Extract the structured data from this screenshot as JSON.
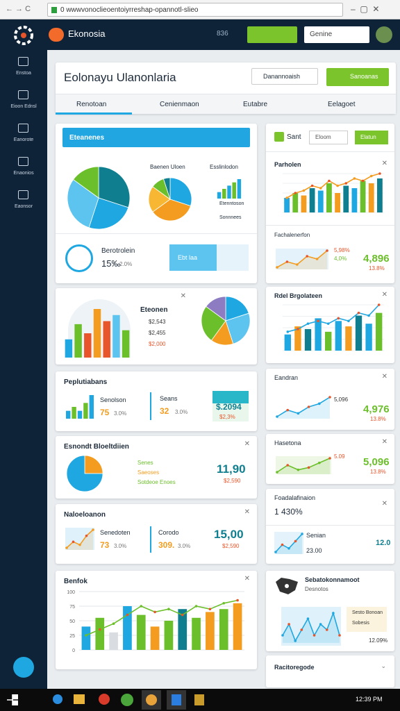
{
  "browser": {
    "url": "0 wwwvonoclieoentoiyrreshap-opannotl-slieo"
  },
  "app": {
    "brand": "Ekonosia",
    "badge": "836",
    "search": "Genine"
  },
  "sidebar": [
    {
      "label": "Enstoa"
    },
    {
      "label": "Eioon Ednsl"
    },
    {
      "label": "Eanorote"
    },
    {
      "label": "Enaonios"
    },
    {
      "label": "Eaonsor"
    }
  ],
  "page": {
    "title": "Eolonayu Ulanonlaria",
    "dropdown": "Danannoaish",
    "button": "Sanoanas",
    "tabs": [
      "Renotoan",
      "Cenienmaon",
      "Eutabre",
      "Eelagoet"
    ]
  },
  "left": [
    {
      "header": "Eteanenes",
      "pie_a": {
        "type": "pie",
        "values": [
          30,
          25,
          30,
          15
        ],
        "colors": [
          "#0f7f8f",
          "#1ea7e0",
          "#5cc4ef",
          "#6bbf2a"
        ]
      },
      "pie_b_title": "Baenen Uloen",
      "pie_b": {
        "type": "pie",
        "values": [
          30,
          35,
          20,
          10,
          5
        ],
        "colors": [
          "#1ea7e0",
          "#f39c1f",
          "#f7b733",
          "#6bbf2a",
          "#0f7f8f"
        ]
      },
      "bars_title": "Esslinlodon",
      "bars_c": {
        "type": "bar",
        "values": [
          2,
          3,
          4,
          5,
          6
        ],
        "colors": [
          "#1ea7e0",
          "#6bbf2a"
        ]
      },
      "legend": [
        "Etenntoson",
        "Sonnnees"
      ],
      "stat_label": "Berotrolein",
      "stat_value": "15‰",
      "stat_sub": "2.0%",
      "stat_box": "Ebt laa"
    },
    {
      "title": "Eteonen",
      "bars": {
        "type": "bar",
        "values": [
          30,
          55,
          40,
          80,
          60,
          70,
          45
        ],
        "colors": [
          "#1ea7e0",
          "#6bbf2a",
          "#e8552a",
          "#f39c1f",
          "#e8552a",
          "#5cc4ef",
          "#6bbf2a"
        ]
      },
      "items": [
        "$2,543",
        "$2,455",
        "$2,000"
      ],
      "pie": {
        "type": "pie",
        "values": [
          20,
          25,
          15,
          25,
          15
        ],
        "colors": [
          "#1ea7e0",
          "#5cc4ef",
          "#f39c1f",
          "#6bbf2a",
          "#8e7cc3"
        ]
      }
    },
    {
      "title": "Peplutiabans",
      "spark": {
        "type": "bar",
        "values": [
          2,
          3,
          2,
          4,
          6
        ],
        "colors": [
          "#1ea7e0",
          "#6bbf2a"
        ]
      },
      "m1": {
        "label": "Senolson",
        "value": "75",
        "sub": "3.0%"
      },
      "m2": {
        "label": "Seans",
        "value": "32",
        "sub": "3.0%"
      },
      "box": {
        "value": "$.2094",
        "sub": "$2,3%"
      }
    },
    {
      "title": "Esnondt Bloeltdiien",
      "pie": {
        "type": "pie",
        "values": [
          25,
          75
        ],
        "colors": [
          "#f39c1f",
          "#1ea7e0"
        ]
      },
      "legend": [
        "Senes",
        "Saeoses",
        "Sotdeoe Enoes"
      ],
      "value": "11,90",
      "sub": "$2,590"
    },
    {
      "title": "Naloeloanon",
      "spark": {
        "type": "line",
        "values": [
          3,
          5,
          4,
          7,
          9
        ],
        "color": "#f39c1f"
      },
      "m1": {
        "label": "Senedoten",
        "value": "73",
        "sub": "3.0%"
      },
      "m2": {
        "label": "Corodo",
        "value": "309.",
        "sub": "3.0%"
      },
      "value": "15,00",
      "sub": "$2,590"
    },
    {
      "title": "Benfok",
      "chart": {
        "type": "combo",
        "bars": [
          40,
          55,
          30,
          75,
          60,
          40,
          50,
          70,
          55,
          65,
          70,
          80
        ],
        "bar_colors": [
          "#1ea7e0",
          "#6bbf2a",
          "#d9dde2",
          "#1ea7e0",
          "#6bbf2a",
          "#f39c1f",
          "#6bbf2a",
          "#0f7f8f",
          "#6bbf2a",
          "#f39c1f",
          "#6bbf2a",
          "#f39c1f"
        ],
        "line": [
          25,
          35,
          45,
          60,
          75,
          65,
          70,
          60,
          75,
          70,
          80,
          85
        ],
        "line_color": "#6bbf2a",
        "ylim": [
          0,
          100
        ],
        "yticks": [
          0,
          25,
          50,
          75,
          100
        ]
      }
    }
  ],
  "right": [
    {
      "tab": "Sant",
      "select": "Eloom",
      "button": "Elatun",
      "chart_title": "Parholen",
      "chart": {
        "type": "combo",
        "bars": [
          30,
          40,
          35,
          50,
          45,
          60,
          40,
          55,
          50,
          65,
          60,
          70
        ],
        "bar_colors": [
          "#1ea7e0",
          "#6bbf2a",
          "#f39c1f",
          "#0f7f8f"
        ],
        "line": [
          30,
          40,
          45,
          55,
          50,
          65,
          55,
          60,
          70,
          65,
          75,
          80
        ],
        "line_color": "#f39c1f"
      },
      "sub_title": "Fachalenerfon",
      "line": {
        "type": "line",
        "values": [
          4,
          6,
          5,
          8,
          7,
          10
        ],
        "color": "#f39c1f"
      },
      "tags": [
        "5,98%",
        "4,0%"
      ],
      "value": "4,896",
      "sub": "13.8%"
    },
    {
      "title": "Rdel Brgolateen",
      "chart": {
        "type": "combo",
        "bars": [
          30,
          45,
          40,
          60,
          35,
          55,
          45,
          65,
          50,
          70
        ],
        "bar_colors": [
          "#1ea7e0",
          "#f39c1f",
          "#0f7f8f",
          "#1ea7e0",
          "#6bbf2a"
        ],
        "line": [
          35,
          40,
          50,
          55,
          50,
          60,
          55,
          70,
          65,
          85
        ],
        "line_color": "#1ea7e0"
      }
    },
    {
      "title": "Eandran",
      "line": {
        "type": "line",
        "values": [
          3,
          5,
          4,
          6,
          7,
          9
        ],
        "color": "#1ea7e0"
      },
      "tag": "5,096",
      "value": "4,976",
      "sub": "13.8%"
    },
    {
      "title": "Hasetona",
      "line": {
        "type": "line",
        "values": [
          3,
          6,
          4,
          5,
          7,
          9
        ],
        "color": "#6bbf2a"
      },
      "tag": "5.09",
      "value": "5,096",
      "sub": "13.8%"
    },
    {
      "title": "Foadalafinaion",
      "big": "1 430%",
      "label": "Senian",
      "value": "23.00",
      "right": "12.0",
      "line": {
        "type": "line",
        "values": [
          3,
          5,
          4,
          6,
          8
        ],
        "color": "#1ea7e0"
      }
    },
    {
      "title": "Sebatokonnamoot",
      "sub": "Desnotos",
      "legend": [
        "Sesto Bonoan",
        "Sobesis"
      ],
      "foot": "12.09%",
      "line": {
        "type": "line",
        "values": [
          5,
          7,
          4,
          6,
          8,
          5,
          7,
          6,
          9,
          5
        ],
        "color": "#1ea7e0"
      }
    },
    {
      "title": "Racitoregode"
    }
  ],
  "taskbar": {
    "clock": "12:39 PM"
  }
}
